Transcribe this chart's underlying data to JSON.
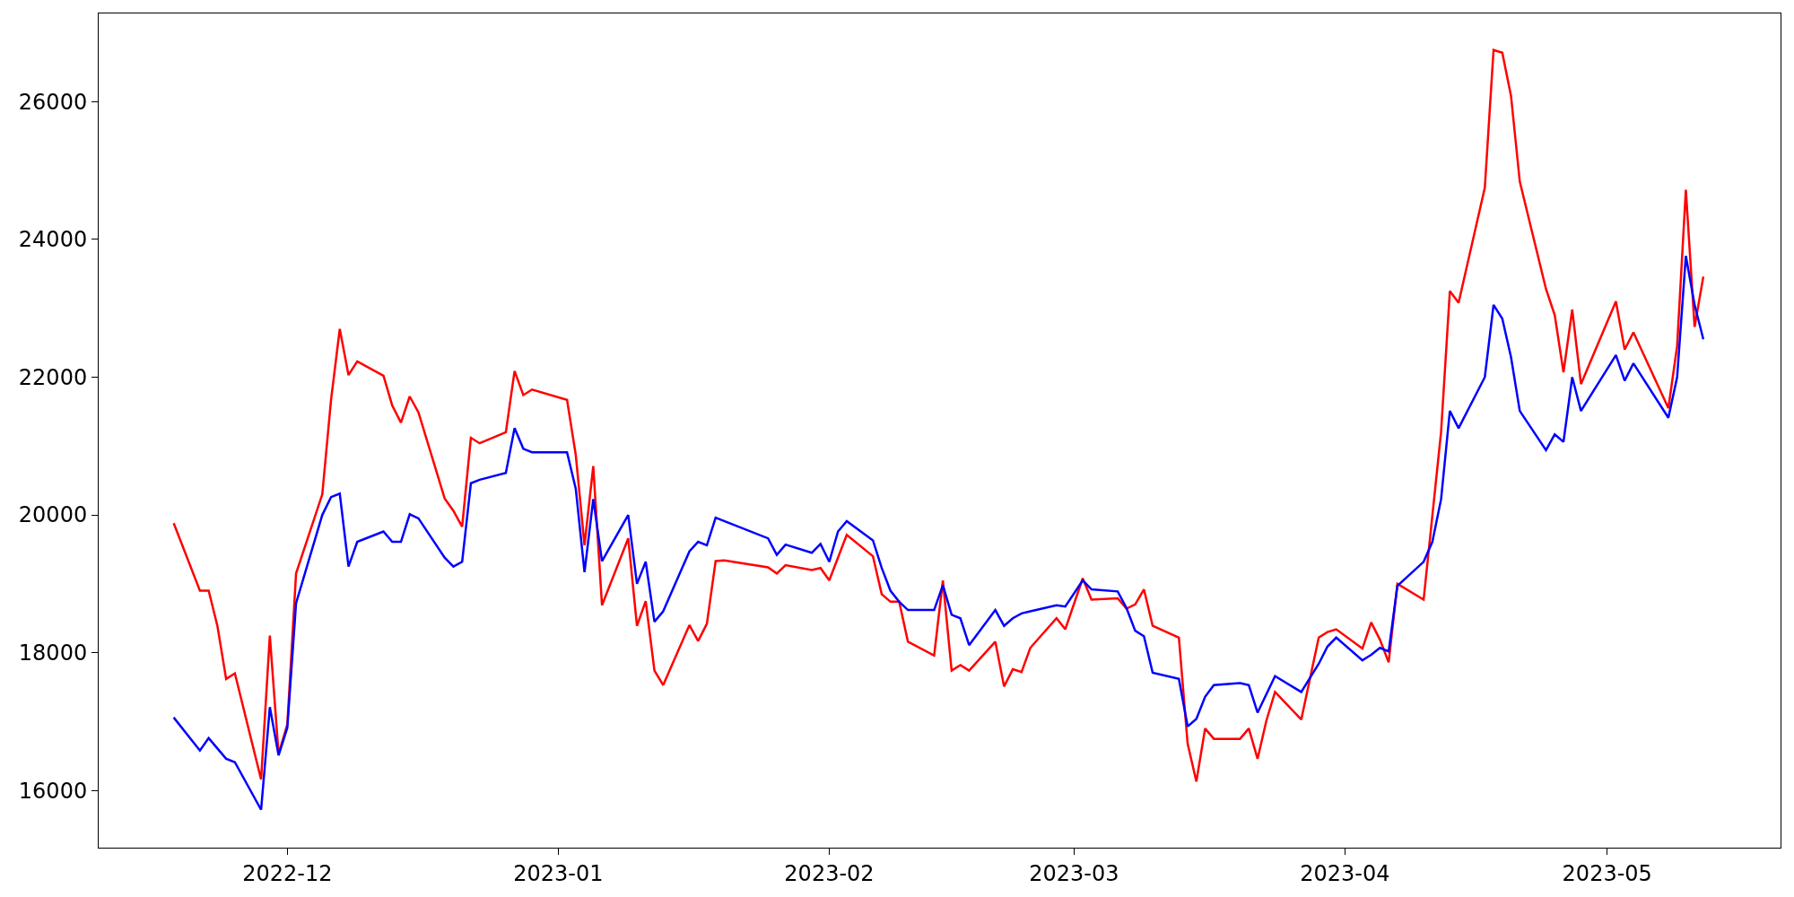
{
  "chart_data": {
    "type": "line",
    "xlim": [
      "2022-11-09T10:00",
      "2023-05-20T20:00"
    ],
    "xticks": [
      {
        "value": "2022-12-01",
        "label": "2022-12"
      },
      {
        "value": "2023-01-01",
        "label": "2023-01"
      },
      {
        "value": "2023-02-01",
        "label": "2023-02"
      },
      {
        "value": "2023-03-01",
        "label": "2023-03"
      },
      {
        "value": "2023-04-01",
        "label": "2023-04"
      },
      {
        "value": "2023-05-01",
        "label": "2023-05"
      }
    ],
    "ylim": [
      15170,
      27280
    ],
    "yticks": [
      16000,
      18000,
      20000,
      22000,
      24000,
      26000
    ],
    "marker": "none",
    "line_style": "solid",
    "series": [
      {
        "color": "#ff0000",
        "x": [
          "2022-11-18",
          "2022-11-21",
          "2022-11-22",
          "2022-11-23",
          "2022-11-24",
          "2022-11-25",
          "2022-11-28",
          "2022-11-29",
          "2022-11-30",
          "2022-12-01",
          "2022-12-02",
          "2022-12-05",
          "2022-12-06",
          "2022-12-07",
          "2022-12-08",
          "2022-12-09",
          "2022-12-12",
          "2022-12-13",
          "2022-12-14",
          "2022-12-15",
          "2022-12-16",
          "2022-12-19",
          "2022-12-20",
          "2022-12-21",
          "2022-12-22",
          "2022-12-23",
          "2022-12-26",
          "2022-12-27",
          "2022-12-28",
          "2022-12-29",
          "2023-01-02",
          "2023-01-03",
          "2023-01-04",
          "2023-01-05",
          "2023-01-06",
          "2023-01-09",
          "2023-01-10",
          "2023-01-11",
          "2023-01-12",
          "2023-01-13",
          "2023-01-16",
          "2023-01-17",
          "2023-01-18",
          "2023-01-19",
          "2023-01-20",
          "2023-01-25",
          "2023-01-26",
          "2023-01-27",
          "2023-01-30",
          "2023-01-31",
          "2023-02-01",
          "2023-02-03",
          "2023-02-06",
          "2023-02-07",
          "2023-02-08",
          "2023-02-09",
          "2023-02-10",
          "2023-02-13",
          "2023-02-14",
          "2023-02-15",
          "2023-02-16",
          "2023-02-17",
          "2023-02-20",
          "2023-02-21",
          "2023-02-22",
          "2023-02-23",
          "2023-02-24",
          "2023-02-27",
          "2023-02-28",
          "2023-03-02",
          "2023-03-03",
          "2023-03-06",
          "2023-03-07",
          "2023-03-08",
          "2023-03-09",
          "2023-03-10",
          "2023-03-13",
          "2023-03-14",
          "2023-03-15",
          "2023-03-16",
          "2023-03-17",
          "2023-03-20",
          "2023-03-21",
          "2023-03-22",
          "2023-03-23",
          "2023-03-24",
          "2023-03-27",
          "2023-03-29",
          "2023-03-30",
          "2023-03-31",
          "2023-04-03",
          "2023-04-04",
          "2023-04-05",
          "2023-04-06",
          "2023-04-07",
          "2023-04-10",
          "2023-04-12",
          "2023-04-13",
          "2023-04-14",
          "2023-04-17",
          "2023-04-18",
          "2023-04-19",
          "2023-04-20",
          "2023-04-21",
          "2023-04-24",
          "2023-04-25",
          "2023-04-26",
          "2023-04-27",
          "2023-04-28",
          "2023-05-02",
          "2023-05-03",
          "2023-05-04",
          "2023-05-08",
          "2023-05-09",
          "2023-05-10",
          "2023-05-11",
          "2023-05-12"
        ],
        "values": [
          19880,
          18900,
          18900,
          18390,
          17620,
          17700,
          16160,
          18250,
          16530,
          16960,
          19150,
          20300,
          21670,
          22700,
          22030,
          22230,
          22020,
          21590,
          21340,
          21720,
          21490,
          20240,
          20060,
          19830,
          21120,
          21040,
          21200,
          22090,
          21740,
          21820,
          21670,
          20870,
          19560,
          20710,
          18690,
          19660,
          18390,
          18750,
          17740,
          17530,
          18400,
          18170,
          18420,
          19330,
          19340,
          19240,
          19150,
          19270,
          19200,
          19230,
          19050,
          19710,
          19400,
          18850,
          18740,
          18740,
          18160,
          17960,
          19050,
          17740,
          17820,
          17740,
          18160,
          17510,
          17760,
          17720,
          18070,
          18500,
          18340,
          19080,
          18770,
          18790,
          18640,
          18700,
          18920,
          18390,
          18220,
          16680,
          16130,
          16900,
          16750,
          16750,
          16900,
          16460,
          17010,
          17430,
          17030,
          18220,
          18300,
          18340,
          18060,
          18440,
          18190,
          17860,
          19000,
          18770,
          21210,
          23250,
          23080,
          24750,
          26750,
          26710,
          26080,
          24840,
          23280,
          22900,
          22070,
          22980,
          21900,
          23100,
          22400,
          22650,
          21550,
          22450,
          24720,
          22730,
          23460
        ]
      },
      {
        "color": "#0000ff",
        "x": [
          "2022-11-18",
          "2022-11-21",
          "2022-11-22",
          "2022-11-24",
          "2022-11-25",
          "2022-11-28",
          "2022-11-29",
          "2022-11-30",
          "2022-12-01",
          "2022-12-02",
          "2022-12-05",
          "2022-12-06",
          "2022-12-07",
          "2022-12-08",
          "2022-12-09",
          "2022-12-12",
          "2022-12-13",
          "2022-12-14",
          "2022-12-15",
          "2022-12-16",
          "2022-12-19",
          "2022-12-20",
          "2022-12-21",
          "2022-12-22",
          "2022-12-23",
          "2022-12-26",
          "2022-12-27",
          "2022-12-28",
          "2022-12-29",
          "2023-01-02",
          "2023-01-03",
          "2023-01-04",
          "2023-01-05",
          "2023-01-06",
          "2023-01-09",
          "2023-01-10",
          "2023-01-11",
          "2023-01-12",
          "2023-01-13",
          "2023-01-16",
          "2023-01-17",
          "2023-01-18",
          "2023-01-19",
          "2023-01-25",
          "2023-01-26",
          "2023-01-27",
          "2023-01-30",
          "2023-01-31",
          "2023-02-01",
          "2023-02-02",
          "2023-02-03",
          "2023-02-06",
          "2023-02-07",
          "2023-02-08",
          "2023-02-09",
          "2023-02-10",
          "2023-02-13",
          "2023-02-14",
          "2023-02-15",
          "2023-02-16",
          "2023-02-17",
          "2023-02-20",
          "2023-02-21",
          "2023-02-22",
          "2023-02-23",
          "2023-02-24",
          "2023-02-27",
          "2023-02-28",
          "2023-03-02",
          "2023-03-03",
          "2023-03-06",
          "2023-03-07",
          "2023-03-08",
          "2023-03-09",
          "2023-03-10",
          "2023-03-13",
          "2023-03-14",
          "2023-03-15",
          "2023-03-16",
          "2023-03-17",
          "2023-03-20",
          "2023-03-21",
          "2023-03-22",
          "2023-03-24",
          "2023-03-27",
          "2023-03-29",
          "2023-03-30",
          "2023-03-31",
          "2023-04-03",
          "2023-04-04",
          "2023-04-05",
          "2023-04-06",
          "2023-04-07",
          "2023-04-10",
          "2023-04-11",
          "2023-04-12",
          "2023-04-13",
          "2023-04-14",
          "2023-04-17",
          "2023-04-18",
          "2023-04-19",
          "2023-04-20",
          "2023-04-21",
          "2023-04-24",
          "2023-04-25",
          "2023-04-26",
          "2023-04-27",
          "2023-04-28",
          "2023-05-02",
          "2023-05-03",
          "2023-05-04",
          "2023-05-08",
          "2023-05-09",
          "2023-05-10",
          "2023-05-11",
          "2023-05-12"
        ],
        "values": [
          17060,
          16580,
          16760,
          16460,
          16410,
          15720,
          17210,
          16510,
          16910,
          18720,
          20000,
          20260,
          20310,
          19250,
          19610,
          19760,
          19610,
          19610,
          20010,
          19950,
          19380,
          19250,
          19320,
          20460,
          20510,
          20610,
          21260,
          20960,
          20910,
          20910,
          20380,
          19170,
          20230,
          19330,
          20000,
          19000,
          19320,
          18450,
          18600,
          19470,
          19610,
          19560,
          19960,
          19660,
          19420,
          19570,
          19450,
          19580,
          19320,
          19760,
          19910,
          19630,
          19230,
          18900,
          18740,
          18620,
          18620,
          18980,
          18550,
          18500,
          18110,
          18620,
          18390,
          18500,
          18570,
          18600,
          18690,
          18670,
          19050,
          18920,
          18890,
          18650,
          18320,
          18240,
          17710,
          17620,
          16930,
          17040,
          17360,
          17530,
          17560,
          17530,
          17130,
          17660,
          17430,
          17840,
          18090,
          18220,
          17890,
          17970,
          18070,
          18020,
          18970,
          19320,
          19610,
          20230,
          21510,
          21260,
          22000,
          23050,
          22850,
          22290,
          21510,
          20940,
          21170,
          21060,
          22000,
          21510,
          22320,
          21950,
          22200,
          21410,
          22000,
          23760,
          23050,
          22550
        ]
      }
    ]
  }
}
